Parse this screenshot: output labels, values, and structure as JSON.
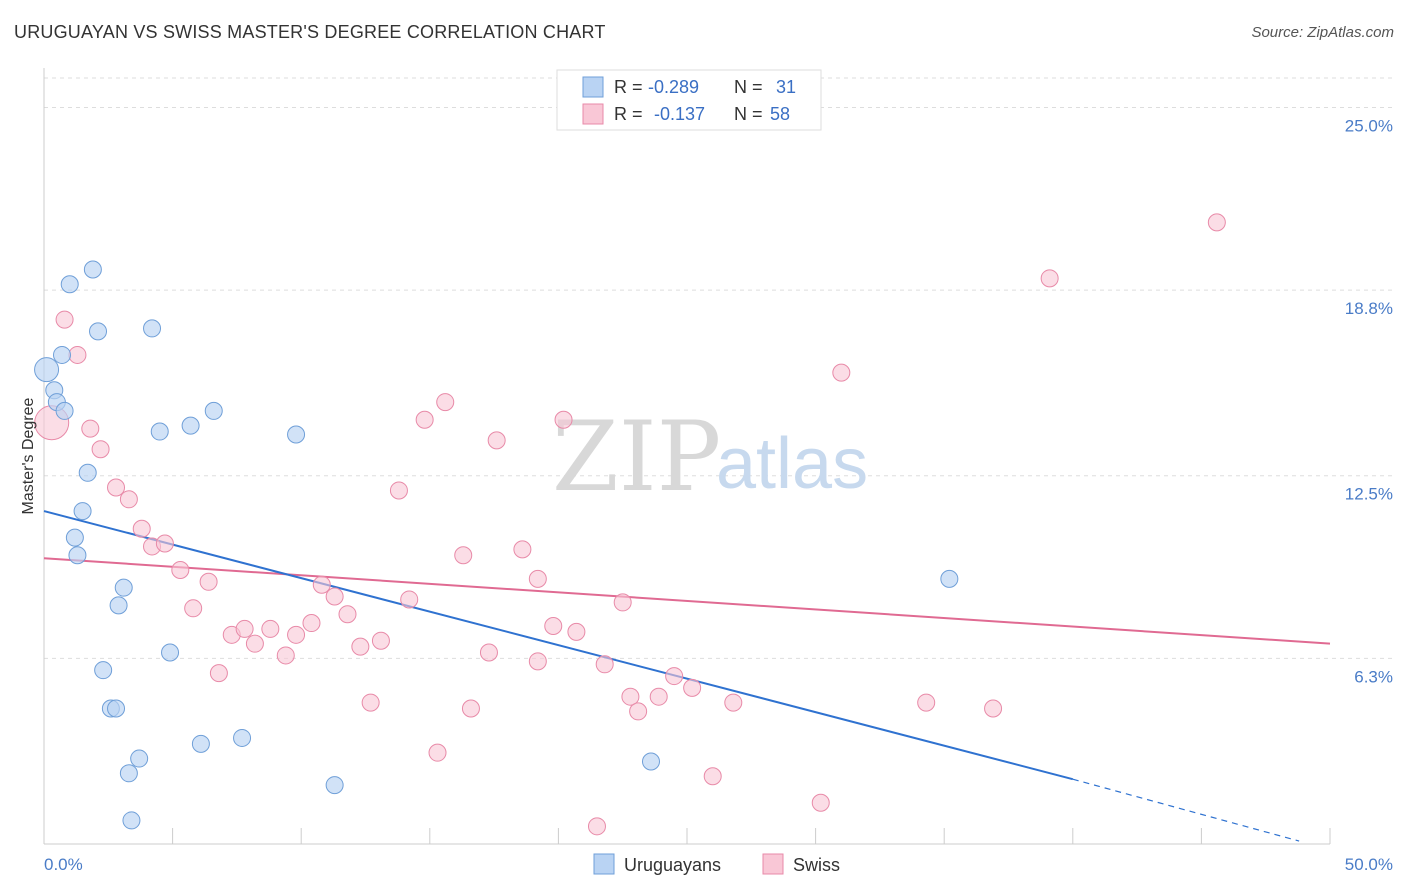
{
  "title": "URUGUAYAN VS SWISS MASTER'S DEGREE CORRELATION CHART",
  "source": "Source: ZipAtlas.com",
  "watermark": {
    "zip": "ZIP",
    "atlas": "atlas"
  },
  "colors": {
    "uruguayan_fill": "#b9d3f3",
    "uruguayan_stroke": "#6f9fd8",
    "uruguayan_line": "#2f72d0",
    "swiss_fill": "#f9c7d6",
    "swiss_stroke": "#e88aa8",
    "swiss_line": "#e06a92",
    "tick_text": "#4a7cc7",
    "grid": "#dddddd"
  },
  "legend_top": {
    "rows": [
      {
        "r_label": "R =",
        "r_value": "-0.289",
        "n_label": "N =",
        "n_value": "31"
      },
      {
        "r_label": "R =",
        "r_value": "-0.137",
        "n_label": "N =",
        "n_value": "58"
      }
    ]
  },
  "legend_bottom": [
    "Uruguayans",
    "Swiss"
  ],
  "chart_data": {
    "type": "scatter",
    "title": "URUGUAYAN VS SWISS MASTER'S DEGREE CORRELATION CHART",
    "xlabel": "",
    "ylabel": "Master's Degree",
    "xlim": [
      0,
      50
    ],
    "ylim": [
      0,
      26
    ],
    "x_tick_labels": [
      "0.0%",
      "50.0%"
    ],
    "y_ticks": [
      6.3,
      12.5,
      18.8,
      25.0
    ],
    "y_tick_labels": [
      "6.3%",
      "12.5%",
      "18.8%",
      "25.0%"
    ],
    "grid": "horizontal dashed",
    "legend_position": "top-center",
    "series": [
      {
        "name": "Uruguayans",
        "r": -0.289,
        "n": 31,
        "points": [
          [
            0.1,
            16.1
          ],
          [
            0.4,
            15.4
          ],
          [
            0.5,
            15.0
          ],
          [
            0.7,
            16.6
          ],
          [
            0.8,
            14.7
          ],
          [
            1.0,
            19.0
          ],
          [
            1.9,
            19.5
          ],
          [
            2.1,
            17.4
          ],
          [
            4.2,
            17.5
          ],
          [
            1.7,
            12.6
          ],
          [
            1.5,
            11.3
          ],
          [
            1.2,
            10.4
          ],
          [
            1.3,
            9.8
          ],
          [
            4.5,
            14.0
          ],
          [
            5.7,
            14.2
          ],
          [
            6.6,
            14.7
          ],
          [
            9.8,
            13.9
          ],
          [
            3.1,
            8.7
          ],
          [
            2.9,
            8.1
          ],
          [
            4.9,
            6.5
          ],
          [
            2.3,
            5.9
          ],
          [
            2.6,
            4.6
          ],
          [
            2.8,
            4.6
          ],
          [
            3.7,
            2.9
          ],
          [
            3.3,
            2.4
          ],
          [
            6.1,
            3.4
          ],
          [
            7.7,
            3.6
          ],
          [
            11.3,
            2.0
          ],
          [
            3.4,
            0.8
          ],
          [
            23.6,
            2.8
          ],
          [
            35.2,
            9.0
          ]
        ],
        "trend": {
          "x0": 0.0,
          "y0": 11.3,
          "x1": 40.0,
          "y1": 2.2,
          "dashed_to_x": 48.8,
          "dashed_to_y": 0.1
        }
      },
      {
        "name": "Swiss",
        "r": -0.137,
        "n": 58,
        "points": [
          [
            0.3,
            14.3
          ],
          [
            0.8,
            17.8
          ],
          [
            1.3,
            16.6
          ],
          [
            1.8,
            14.1
          ],
          [
            2.2,
            13.4
          ],
          [
            2.8,
            12.1
          ],
          [
            3.3,
            11.7
          ],
          [
            3.8,
            10.7
          ],
          [
            4.2,
            10.1
          ],
          [
            4.7,
            10.2
          ],
          [
            5.3,
            9.3
          ],
          [
            5.8,
            8.0
          ],
          [
            6.4,
            8.9
          ],
          [
            6.8,
            5.8
          ],
          [
            7.3,
            7.1
          ],
          [
            7.8,
            7.3
          ],
          [
            8.2,
            6.8
          ],
          [
            8.8,
            7.3
          ],
          [
            9.4,
            6.4
          ],
          [
            9.8,
            7.1
          ],
          [
            10.4,
            7.5
          ],
          [
            10.8,
            8.8
          ],
          [
            11.3,
            8.4
          ],
          [
            11.8,
            7.8
          ],
          [
            12.3,
            6.7
          ],
          [
            12.7,
            4.8
          ],
          [
            13.1,
            6.9
          ],
          [
            13.8,
            12.0
          ],
          [
            14.2,
            8.3
          ],
          [
            14.8,
            14.4
          ],
          [
            15.3,
            3.1
          ],
          [
            15.6,
            15.0
          ],
          [
            16.3,
            9.8
          ],
          [
            16.6,
            4.6
          ],
          [
            17.3,
            6.5
          ],
          [
            17.6,
            13.7
          ],
          [
            18.6,
            10.0
          ],
          [
            19.2,
            9.0
          ],
          [
            19.2,
            6.2
          ],
          [
            19.8,
            7.4
          ],
          [
            20.2,
            14.4
          ],
          [
            20.7,
            7.2
          ],
          [
            21.5,
            0.6
          ],
          [
            21.8,
            6.1
          ],
          [
            22.5,
            8.2
          ],
          [
            22.8,
            5.0
          ],
          [
            23.1,
            4.5
          ],
          [
            23.9,
            5.0
          ],
          [
            24.5,
            5.7
          ],
          [
            25.2,
            5.3
          ],
          [
            26.0,
            2.3
          ],
          [
            26.8,
            4.8
          ],
          [
            30.2,
            1.4
          ],
          [
            31.0,
            16.0
          ],
          [
            34.3,
            4.8
          ],
          [
            36.9,
            4.6
          ],
          [
            39.1,
            19.2
          ],
          [
            45.6,
            21.1
          ]
        ],
        "trend": {
          "x0": 0.0,
          "y0": 9.7,
          "x1": 50.0,
          "y1": 6.8
        }
      }
    ]
  }
}
